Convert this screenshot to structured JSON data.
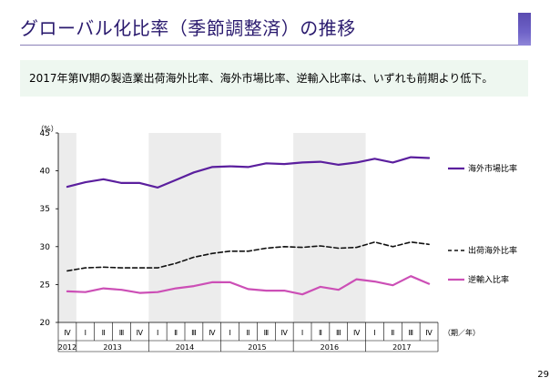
{
  "slide": {
    "title": "グローバル化比率（季節調整済）の推移",
    "summary": "2017年第Ⅳ期の製造業出荷海外比率、海外市場比率、逆輸入比率は、いずれも前期より低下。",
    "page_number": "29"
  },
  "chart_data": {
    "type": "line",
    "y_unit_label": "（%）",
    "x_unit_label": "（期／年）",
    "ylim": [
      20,
      45
    ],
    "yticks": [
      20,
      25,
      30,
      35,
      40,
      45
    ],
    "categories": [
      "Ⅳ",
      "Ⅰ",
      "Ⅱ",
      "Ⅲ",
      "Ⅳ",
      "Ⅰ",
      "Ⅱ",
      "Ⅲ",
      "Ⅳ",
      "Ⅰ",
      "Ⅱ",
      "Ⅲ",
      "Ⅳ",
      "Ⅰ",
      "Ⅱ",
      "Ⅲ",
      "Ⅳ",
      "Ⅰ",
      "Ⅱ",
      "Ⅲ",
      "Ⅳ"
    ],
    "years": [
      {
        "label": "2012",
        "start": 0,
        "end": 0
      },
      {
        "label": "2013",
        "start": 1,
        "end": 4
      },
      {
        "label": "2014",
        "start": 5,
        "end": 8
      },
      {
        "label": "2015",
        "start": 9,
        "end": 12
      },
      {
        "label": "2016",
        "start": 13,
        "end": 16
      },
      {
        "label": "2017",
        "start": 17,
        "end": 20
      }
    ],
    "shaded_years": [
      "2012",
      "2014",
      "2016"
    ],
    "grid": false,
    "legend_position": "right",
    "series": [
      {
        "name": "海外市場比率",
        "color": "#5b1f9e",
        "dash": "solid",
        "values": [
          37.9,
          38.5,
          38.9,
          38.4,
          38.4,
          37.8,
          38.8,
          39.8,
          40.5,
          40.6,
          40.5,
          41.0,
          40.9,
          41.1,
          41.2,
          40.8,
          41.1,
          41.6,
          41.1,
          41.8,
          41.7
        ]
      },
      {
        "name": "出荷海外比率",
        "color": "#111111",
        "dash": "dashed",
        "values": [
          26.8,
          27.2,
          27.3,
          27.2,
          27.2,
          27.2,
          27.8,
          28.6,
          29.1,
          29.4,
          29.4,
          29.8,
          30.0,
          29.9,
          30.1,
          29.8,
          29.9,
          30.6,
          30.0,
          30.6,
          30.3
        ]
      },
      {
        "name": "逆輸入比率",
        "color": "#cc4fb6",
        "dash": "solid",
        "values": [
          24.1,
          24.0,
          24.5,
          24.3,
          23.9,
          24.0,
          24.5,
          24.8,
          25.3,
          25.3,
          24.4,
          24.2,
          24.2,
          23.7,
          24.7,
          24.3,
          25.7,
          25.4,
          24.9,
          26.1,
          25.1
        ]
      }
    ]
  }
}
